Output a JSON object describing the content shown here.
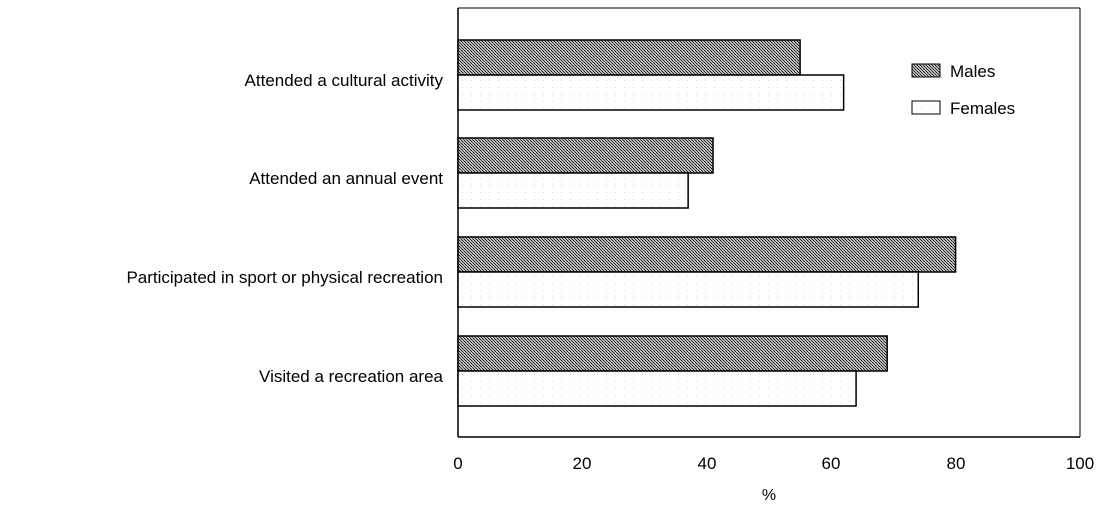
{
  "chart_data": {
    "type": "bar",
    "orientation": "horizontal",
    "categories": [
      "Attended a cultural activity",
      "Attended an annual event",
      "Participated in sport or physical recreation",
      "Visited a recreation area"
    ],
    "series": [
      {
        "name": "Males",
        "values": [
          55,
          41,
          80,
          69
        ],
        "fill": "hatched-dark",
        "color": "#3a3a3a"
      },
      {
        "name": "Females",
        "values": [
          62,
          37,
          74,
          64
        ],
        "fill": "white-dotted",
        "color": "#ffffff"
      }
    ],
    "xlabel": "%",
    "xlim": [
      0,
      100
    ],
    "xticks": [
      0,
      20,
      40,
      60,
      80,
      100
    ],
    "grid": false,
    "legend": "top-right"
  }
}
